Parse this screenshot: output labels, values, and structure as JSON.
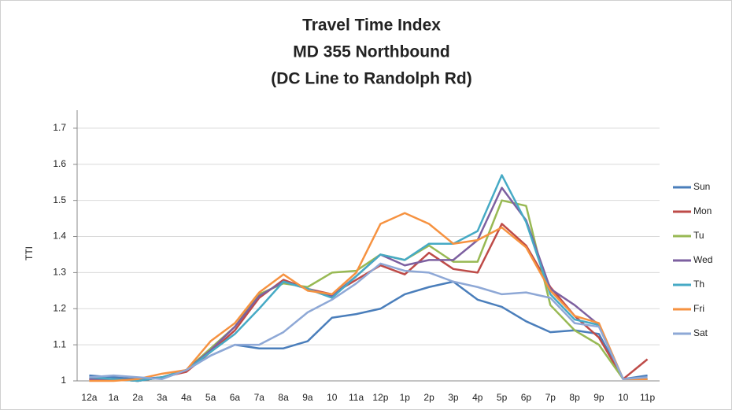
{
  "chart_data": {
    "type": "line",
    "title": [
      "Travel Time Index",
      "MD 355 Northbound",
      "(DC Line to Randolph Rd)"
    ],
    "y_label": "TTI",
    "categories": [
      "12a",
      "1a",
      "2a",
      "3a",
      "4a",
      "5a",
      "6a",
      "7a",
      "8a",
      "9a",
      "10",
      "11a",
      "12p",
      "1p",
      "2p",
      "3p",
      "4p",
      "5p",
      "6p",
      "7p",
      "8p",
      "9p",
      "10",
      "11p"
    ],
    "ylim": [
      1,
      1.75
    ],
    "yticks": [
      1,
      1.1,
      1.2,
      1.3,
      1.4,
      1.5,
      1.6,
      1.7
    ],
    "grid": true,
    "legend": "right",
    "series": [
      {
        "name": "Sun",
        "color": "#4a7ebb",
        "values": [
          1.015,
          1.01,
          1.005,
          1.01,
          1.03,
          1.07,
          1.1,
          1.09,
          1.09,
          1.11,
          1.175,
          1.185,
          1.2,
          1.24,
          1.26,
          1.275,
          1.225,
          1.205,
          1.165,
          1.135,
          1.14,
          1.13,
          1.005,
          1.015
        ]
      },
      {
        "name": "Mon",
        "color": "#be4b48",
        "values": [
          1.005,
          1.005,
          1.0,
          1.01,
          1.025,
          1.08,
          1.14,
          1.23,
          1.28,
          1.255,
          1.24,
          1.28,
          1.32,
          1.295,
          1.355,
          1.31,
          1.3,
          1.435,
          1.375,
          1.26,
          1.18,
          1.12,
          1.005,
          1.06
        ]
      },
      {
        "name": "Tu",
        "color": "#98b954",
        "values": [
          1.005,
          1.005,
          1.0,
          1.01,
          1.03,
          1.09,
          1.15,
          1.24,
          1.27,
          1.26,
          1.3,
          1.305,
          1.35,
          1.335,
          1.375,
          1.33,
          1.33,
          1.5,
          1.485,
          1.21,
          1.14,
          1.1,
          1.005,
          1.005
        ]
      },
      {
        "name": "Wed",
        "color": "#7d60a0",
        "values": [
          1.005,
          1.005,
          1.0,
          1.01,
          1.03,
          1.085,
          1.15,
          1.235,
          1.275,
          1.255,
          1.235,
          1.29,
          1.35,
          1.32,
          1.335,
          1.335,
          1.39,
          1.535,
          1.445,
          1.255,
          1.21,
          1.155,
          1.005,
          1.005
        ]
      },
      {
        "name": "Th",
        "color": "#46aac5",
        "values": [
          1.01,
          1.005,
          1.0,
          1.01,
          1.03,
          1.08,
          1.13,
          1.2,
          1.275,
          1.255,
          1.23,
          1.29,
          1.35,
          1.335,
          1.38,
          1.38,
          1.415,
          1.57,
          1.44,
          1.24,
          1.17,
          1.155,
          1.005,
          1.005
        ]
      },
      {
        "name": "Fri",
        "color": "#f69240",
        "values": [
          1.0,
          1.0,
          1.005,
          1.02,
          1.03,
          1.11,
          1.16,
          1.245,
          1.295,
          1.25,
          1.24,
          1.3,
          1.435,
          1.465,
          1.435,
          1.38,
          1.39,
          1.425,
          1.37,
          1.25,
          1.18,
          1.16,
          1.005,
          1.005
        ]
      },
      {
        "name": "Sat",
        "color": "#8ea8d6",
        "values": [
          1.01,
          1.015,
          1.01,
          1.005,
          1.03,
          1.07,
          1.1,
          1.1,
          1.135,
          1.19,
          1.225,
          1.27,
          1.325,
          1.305,
          1.3,
          1.275,
          1.26,
          1.24,
          1.245,
          1.23,
          1.16,
          1.15,
          1.005,
          1.01
        ]
      }
    ]
  }
}
